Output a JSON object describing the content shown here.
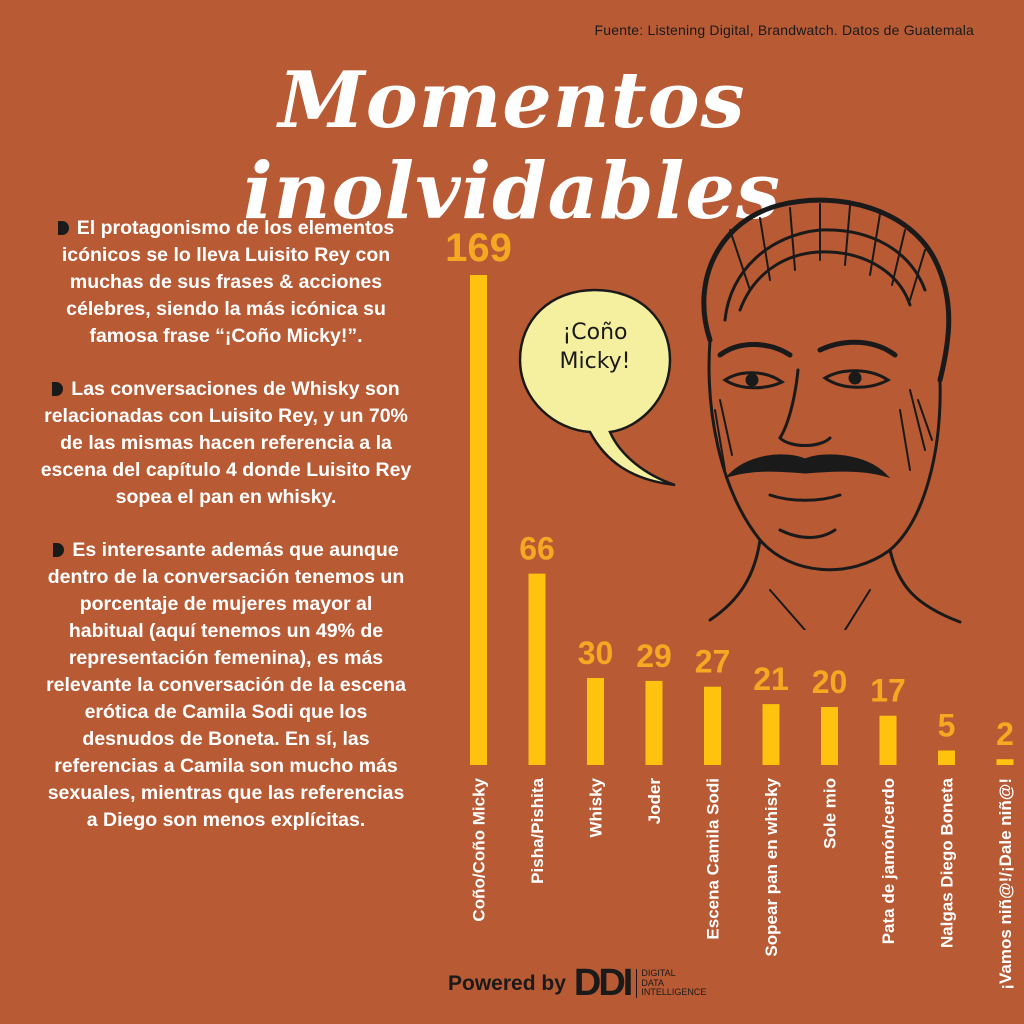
{
  "header": {
    "source": "Fuente: Listening Digital, Brandwatch. Datos de Guatemala",
    "title": "Momentos inolvidables"
  },
  "paragraphs": [
    "El protagonismo de los elementos icónicos se lo lleva Luisito Rey con muchas de sus frases & acciones célebres, siendo la más icónica su famosa frase “¡Coño Micky!”.",
    "Las conversaciones de Whisky son relacionadas con Luisito Rey, y un 70% de las mismas hacen referencia a la escena del capítulo 4 donde Luisito Rey sopea el pan en whisky.",
    "Es interesante además que aunque dentro de la conversación tenemos un porcentaje de mujeres mayor al habitual (aquí tenemos un 49% de representación femenina), es más relevante la conversación de la escena erótica de Camila Sodi que los desnudos de Boneta. En sí, las referencias a Camila son mucho más sexuales, mientras que las referencias a Diego son menos explícitas."
  ],
  "bubble": {
    "line1": "¡Coño",
    "line2": "Micky!"
  },
  "footer": {
    "powered_by": "Powered by",
    "logo": "DDI",
    "logo_sub": [
      "DIGITAL",
      "DATA",
      "INTELLIGENCE"
    ]
  },
  "colors": {
    "background": "#b85a34",
    "bar": "#ffc20e",
    "value_label": "#f7a823",
    "text": "#ffffff",
    "ink": "#1a1a1a",
    "bubble": "#f5f0a0"
  },
  "chart_data": {
    "type": "bar",
    "categories": [
      "Coño/Coño Micky",
      "Pisha/Pishita",
      "Whisky",
      "Joder",
      "Escena Camila Sodi",
      "Sopear pan en whisky",
      "Sole mio",
      "Pata de jamón/cerdo",
      "Nalgas Diego Boneta",
      "¡Vamos niñ@!/¡Dale niñ@!"
    ],
    "values": [
      169,
      66,
      30,
      29,
      27,
      21,
      20,
      17,
      5,
      2
    ],
    "title": "",
    "xlabel": "",
    "ylabel": "",
    "ylim": [
      0,
      169
    ],
    "grid": false
  }
}
